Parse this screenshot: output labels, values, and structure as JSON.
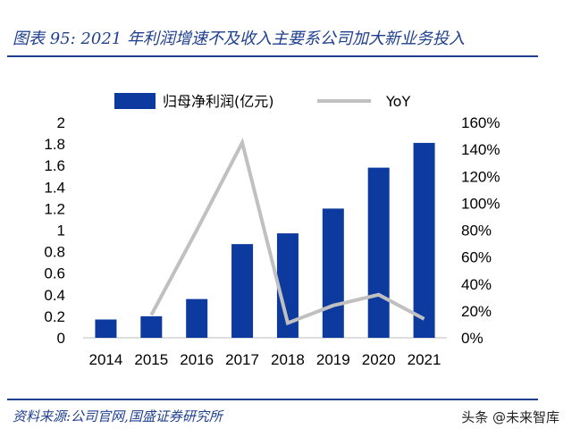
{
  "header": {
    "title": "图表 95:  2021 年利润增速不及收入主要系公司加大新业务投入"
  },
  "footer": {
    "source": "资料来源:公司官网,国盛证券研究所",
    "watermark": "头条 @未来智库"
  },
  "colors": {
    "bar": "#0d3a9e",
    "line": "#c0c0c0",
    "title": "#1f3f8f"
  },
  "chart_data": {
    "type": "bar",
    "categories": [
      "2014",
      "2015",
      "2016",
      "2017",
      "2018",
      "2019",
      "2020",
      "2021"
    ],
    "series": [
      {
        "name": "归母净利润(亿元)",
        "type": "bar",
        "axis": "left",
        "values": [
          0.17,
          0.2,
          0.36,
          0.87,
          0.97,
          1.2,
          1.58,
          1.81
        ]
      },
      {
        "name": "YoY",
        "type": "line",
        "axis": "right",
        "values": [
          null,
          0.17,
          0.8,
          1.45,
          0.11,
          0.24,
          0.32,
          0.14
        ]
      }
    ],
    "y_left": {
      "min": 0,
      "max": 2,
      "ticks": [
        "0",
        "0.2",
        "0.4",
        "0.6",
        "0.8",
        "1",
        "1.2",
        "1.4",
        "1.6",
        "1.8",
        "2"
      ]
    },
    "y_right": {
      "min": 0,
      "max": 1.6,
      "ticks": [
        "0%",
        "20%",
        "40%",
        "60%",
        "80%",
        "100%",
        "120%",
        "140%",
        "160%"
      ]
    },
    "legend_position": "top",
    "grid": false
  }
}
